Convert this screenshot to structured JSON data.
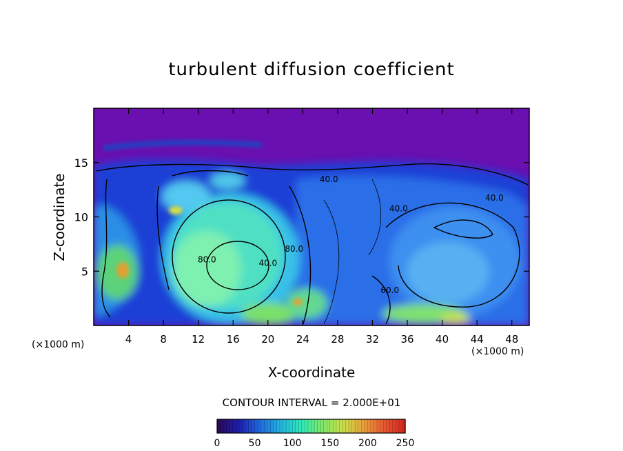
{
  "chart_data": {
    "type": "heatmap",
    "title": "turbulent diffusion coefficient",
    "xlabel": "X-coordinate",
    "ylabel": "Z-coordinate",
    "x_unit": "(×1000 m)",
    "xlim": [
      0,
      50
    ],
    "ylim": [
      0,
      20
    ],
    "x_ticks": [
      4,
      8,
      12,
      16,
      20,
      24,
      28,
      32,
      36,
      40,
      44,
      48
    ],
    "y_ticks": [
      5,
      10,
      15
    ],
    "contour_interval_text": "CONTOUR INTERVAL = 2.000E+01",
    "colorbar": {
      "min": 0,
      "max": 250,
      "ticks": [
        0,
        50,
        100,
        150,
        200,
        250
      ],
      "colors": [
        "#2a0a5e",
        "#1d1fb0",
        "#1f6be0",
        "#22b5e0",
        "#2ee8b8",
        "#7de86a",
        "#c9e04a",
        "#e8a23a",
        "#e85a30",
        "#d42820"
      ]
    },
    "contour_labels": [
      {
        "x": 13,
        "y": 5.8,
        "text": "80.0"
      },
      {
        "x": 20,
        "y": 5.5,
        "text": "40.0"
      },
      {
        "x": 23,
        "y": 6.8,
        "text": "80.0"
      },
      {
        "x": 27,
        "y": 13.2,
        "text": "40.0"
      },
      {
        "x": 35,
        "y": 10.5,
        "text": "40.0"
      },
      {
        "x": 34,
        "y": 3.0,
        "text": "60.0"
      },
      {
        "x": 46,
        "y": 11.5,
        "text": "40.0"
      }
    ]
  }
}
